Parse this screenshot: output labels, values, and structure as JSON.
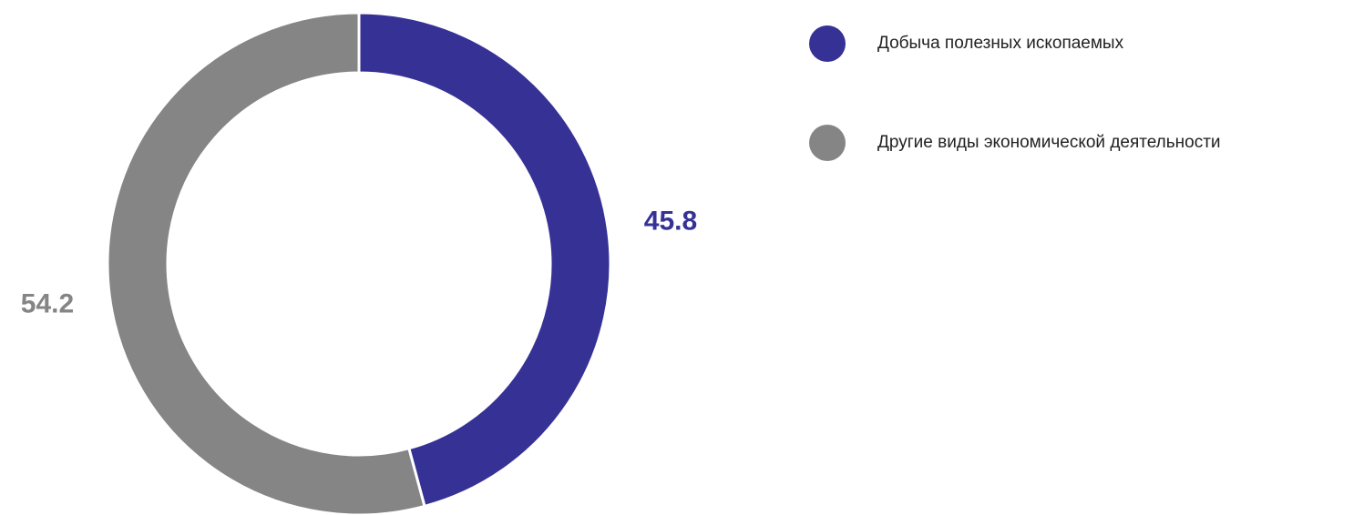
{
  "chart_data": {
    "type": "donut",
    "categories": [
      "Добыча полезных ископаемых",
      "Другие виды экономической деятельности"
    ],
    "values": [
      45.8,
      54.2
    ],
    "colors": [
      "#363195",
      "#858585"
    ],
    "legend": "top-right"
  }
}
